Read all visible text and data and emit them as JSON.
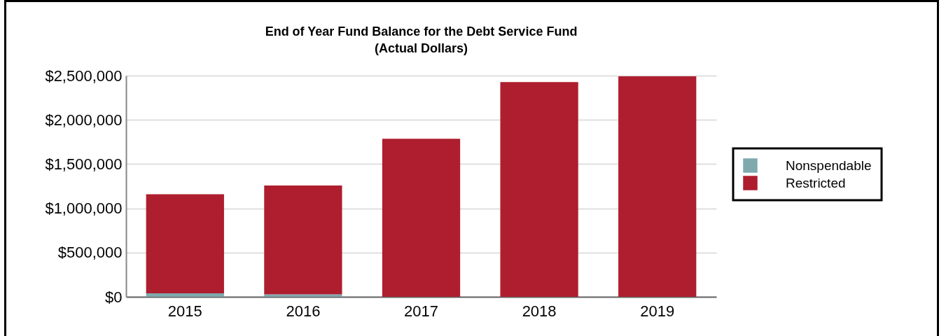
{
  "chart_data": {
    "type": "bar",
    "title": "End of Year Fund Balance for the Debt Service Fund",
    "subtitle": "(Actual Dollars)",
    "categories": [
      "2015",
      "2016",
      "2017",
      "2018",
      "2019"
    ],
    "series": [
      {
        "name": "Nonspendable",
        "color": "#7fa9ad",
        "values": [
          40000,
          27000,
          0,
          0,
          0
        ]
      },
      {
        "name": "Restricted",
        "color": "#ae1e2e",
        "values": [
          1120000,
          1230000,
          1786000,
          2427000,
          2493000
        ]
      }
    ],
    "stacked": true,
    "ylim": [
      0,
      2500000
    ],
    "yticks": [
      {
        "value": 0,
        "label": "$0"
      },
      {
        "value": 500000,
        "label": "$500,000"
      },
      {
        "value": 1000000,
        "label": "$1,000,000"
      },
      {
        "value": 1500000,
        "label": "$1,500,000"
      },
      {
        "value": 2000000,
        "label": "$2,000,000"
      },
      {
        "value": 2500000,
        "label": "$2,500,000"
      }
    ],
    "grid": "y",
    "legend": "right"
  }
}
